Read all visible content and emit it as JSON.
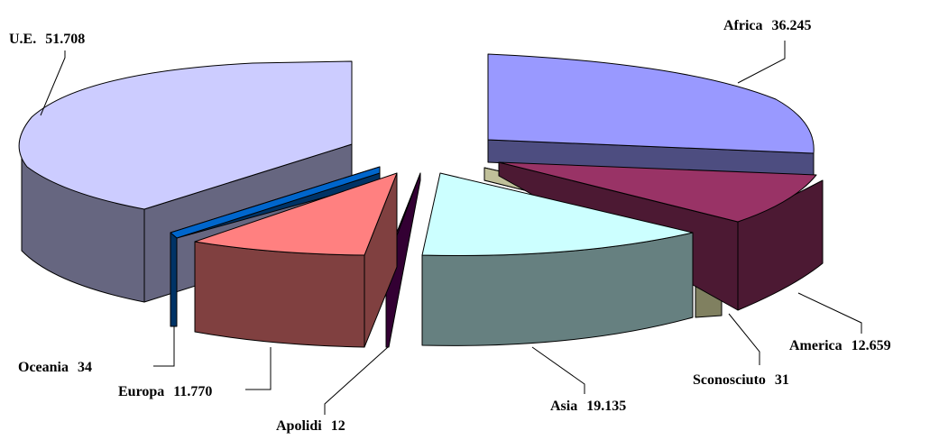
{
  "chart_data": {
    "type": "pie",
    "style": "3d-exploded",
    "legend": "none",
    "slices": [
      {
        "name": "Africa",
        "value_label": "36.245",
        "value": 36245,
        "top_color": "#9999ff",
        "side_color": "#4d4d80"
      },
      {
        "name": "America",
        "value_label": "12.659",
        "value": 12659,
        "top_color": "#993366",
        "side_color": "#4c1933"
      },
      {
        "name": "Sconosciuto",
        "value_label": "31",
        "value": 31,
        "top_color": "#c0c09a",
        "side_color": "#808060"
      },
      {
        "name": "Asia",
        "value_label": "19.135",
        "value": 19135,
        "top_color": "#ccffff",
        "side_color": "#668080"
      },
      {
        "name": "Apolidi",
        "value_label": "12",
        "value": 12,
        "top_color": "#660066",
        "side_color": "#330033"
      },
      {
        "name": "Europa",
        "value_label": "11.770",
        "value": 11770,
        "top_color": "#ff8080",
        "side_color": "#804040"
      },
      {
        "name": "Oceania",
        "value_label": "34",
        "value": 34,
        "top_color": "#0066cc",
        "side_color": "#003366"
      },
      {
        "name": "U.E.",
        "value_label": "51.708",
        "value": 51708,
        "top_color": "#ccccff",
        "side_color": "#666680"
      }
    ]
  }
}
